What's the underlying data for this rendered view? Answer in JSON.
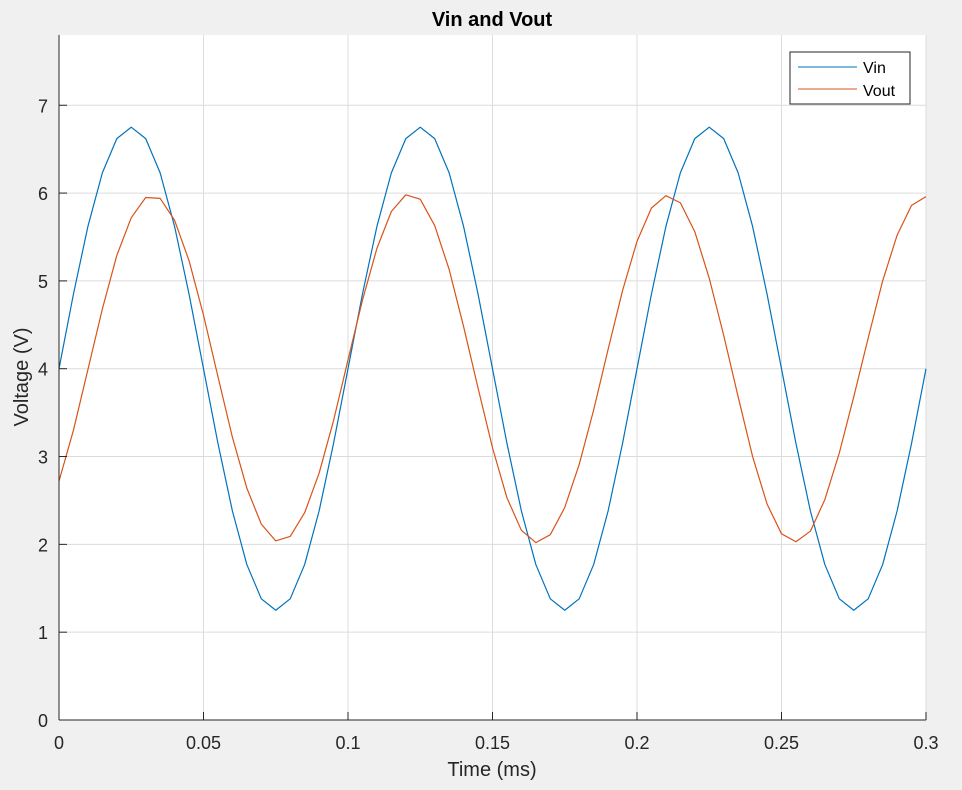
{
  "chart_data": {
    "type": "line",
    "title": "Vin and Vout",
    "xlabel": "Time (ms)",
    "ylabel": "Voltage (V)",
    "xlim": [
      0,
      0.3
    ],
    "ylim": [
      0,
      7.8
    ],
    "xticks": [
      0,
      0.05,
      0.1,
      0.15,
      0.2,
      0.25,
      0.3
    ],
    "xtick_labels": [
      "0",
      "0.05",
      "0.1",
      "0.15",
      "0.2",
      "0.25",
      "0.3"
    ],
    "yticks": [
      0,
      1,
      2,
      3,
      4,
      5,
      6,
      7
    ],
    "ytick_labels": [
      "0",
      "1",
      "2",
      "3",
      "4",
      "5",
      "6",
      "7"
    ],
    "grid": true,
    "legend_position": "top-right",
    "background_color": "#ffffff",
    "figure_color": "#f0f0f0",
    "series": [
      {
        "name": "Vin",
        "color": "#0072bd",
        "x": [
          0,
          0.005,
          0.01,
          0.015,
          0.02,
          0.025,
          0.03,
          0.035,
          0.04,
          0.045,
          0.05,
          0.055,
          0.06,
          0.065,
          0.07,
          0.075,
          0.08,
          0.085,
          0.09,
          0.095,
          0.1,
          0.105,
          0.11,
          0.115,
          0.12,
          0.125,
          0.13,
          0.135,
          0.14,
          0.145,
          0.15,
          0.155,
          0.16,
          0.165,
          0.17,
          0.175,
          0.18,
          0.185,
          0.19,
          0.195,
          0.2,
          0.205,
          0.21,
          0.215,
          0.22,
          0.225,
          0.23,
          0.235,
          0.24,
          0.245,
          0.25,
          0.255,
          0.26,
          0.265,
          0.27,
          0.275,
          0.28,
          0.285,
          0.29,
          0.295,
          0.3
        ],
        "y": [
          4.0,
          4.85,
          5.62,
          6.23,
          6.62,
          6.75,
          6.62,
          6.23,
          5.62,
          4.85,
          4.0,
          3.15,
          2.38,
          1.77,
          1.38,
          1.25,
          1.38,
          1.77,
          2.38,
          3.15,
          4.0,
          4.85,
          5.62,
          6.23,
          6.62,
          6.75,
          6.62,
          6.23,
          5.62,
          4.85,
          4.0,
          3.15,
          2.38,
          1.77,
          1.38,
          1.25,
          1.38,
          1.77,
          2.38,
          3.15,
          4.0,
          4.85,
          5.62,
          6.23,
          6.62,
          6.75,
          6.62,
          6.23,
          5.62,
          4.85,
          4.0,
          3.15,
          2.38,
          1.77,
          1.38,
          1.25,
          1.38,
          1.77,
          2.38,
          3.15,
          4.0
        ]
      },
      {
        "name": "Vout",
        "color": "#d95319",
        "x": [
          0,
          0.005,
          0.01,
          0.015,
          0.02,
          0.025,
          0.03,
          0.035,
          0.04,
          0.045,
          0.05,
          0.055,
          0.06,
          0.065,
          0.07,
          0.075,
          0.08,
          0.085,
          0.09,
          0.095,
          0.1,
          0.105,
          0.11,
          0.115,
          0.12,
          0.125,
          0.13,
          0.135,
          0.14,
          0.145,
          0.15,
          0.155,
          0.16,
          0.165,
          0.17,
          0.175,
          0.18,
          0.185,
          0.19,
          0.195,
          0.2,
          0.205,
          0.21,
          0.215,
          0.22,
          0.225,
          0.23,
          0.235,
          0.24,
          0.245,
          0.25,
          0.255,
          0.26,
          0.265,
          0.27,
          0.275,
          0.28,
          0.285,
          0.29,
          0.295,
          0.3
        ],
        "y": [
          2.72,
          3.3,
          3.99,
          4.68,
          5.29,
          5.72,
          5.95,
          5.94,
          5.69,
          5.23,
          4.61,
          3.91,
          3.22,
          2.64,
          2.23,
          2.04,
          2.09,
          2.36,
          2.81,
          3.41,
          4.1,
          4.78,
          5.37,
          5.79,
          5.98,
          5.93,
          5.63,
          5.13,
          4.48,
          3.78,
          3.1,
          2.53,
          2.16,
          2.02,
          2.11,
          2.42,
          2.91,
          3.53,
          4.22,
          4.89,
          5.45,
          5.83,
          5.97,
          5.89,
          5.56,
          5.03,
          4.38,
          3.68,
          3.0,
          2.46,
          2.12,
          2.03,
          2.15,
          2.51,
          3.04,
          3.68,
          4.35,
          5.0,
          5.52,
          5.86,
          5.96
        ]
      }
    ]
  }
}
